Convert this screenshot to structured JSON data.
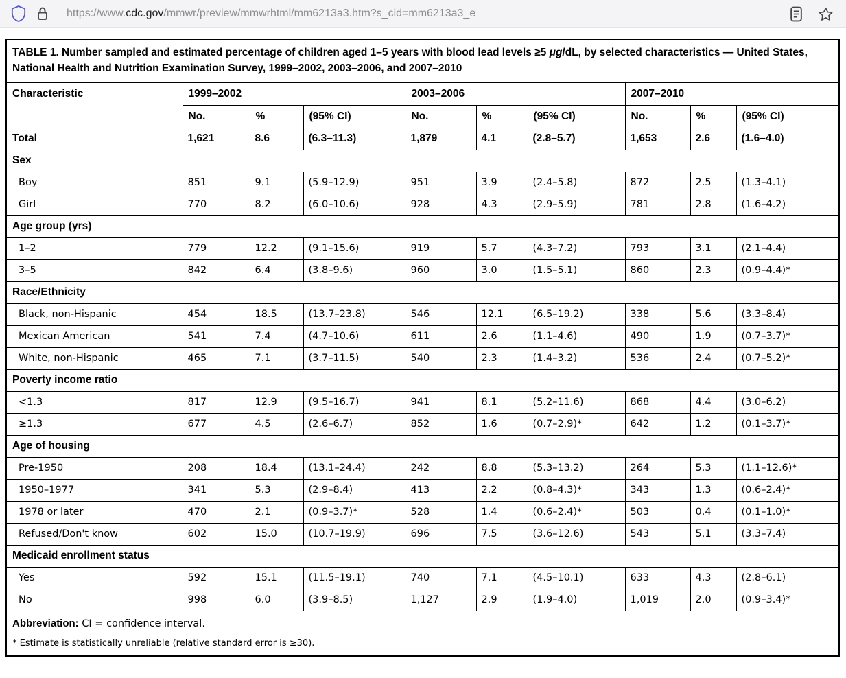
{
  "browser": {
    "url_prefix": "https://www.",
    "url_domain": "cdc.gov",
    "url_path": "/mmwr/preview/mmwrhtml/mm6213a3.htm?s_cid=mm6213a3_e",
    "icons": {
      "left": [
        "shield-icon",
        "lock-icon"
      ],
      "right": [
        "reader-mode-icon",
        "bookmark-star-icon"
      ]
    },
    "colors": {
      "shield": "#5a5ad2",
      "chrome_bg": "#f4f3f5",
      "url_gray": "#8d8c90",
      "url_dark": "#1e1e1f"
    }
  },
  "table": {
    "title_pre": "TABLE 1. Number sampled and estimated percentage of children aged 1–5 years with blood lead levels ≥5 ",
    "title_italic": "μg",
    "title_post": "/dL, by selected characteristics — United States, National Health and Nutrition Examination Survey, 1999–2002, 2003–2006, and 2007–2010",
    "characteristic_header": "Characteristic",
    "col_groups": [
      "1999–2002",
      "2003–2006",
      "2007–2010"
    ],
    "sub_headers": [
      "No.",
      "%",
      "(95% CI)"
    ],
    "total_row": {
      "label": "Total",
      "values": [
        "1,621",
        "8.6",
        "(6.3–11.3)",
        "1,879",
        "4.1",
        "(2.8–5.7)",
        "1,653",
        "2.6",
        "(1.6–4.0)"
      ]
    },
    "sections": [
      {
        "header": "Sex",
        "rows": [
          {
            "label": "Boy",
            "values": [
              "851",
              "9.1",
              "(5.9–12.9)",
              "951",
              "3.9",
              "(2.4–5.8)",
              "872",
              "2.5",
              "(1.3–4.1)"
            ]
          },
          {
            "label": "Girl",
            "values": [
              "770",
              "8.2",
              "(6.0–10.6)",
              "928",
              "4.3",
              "(2.9–5.9)",
              "781",
              "2.8",
              "(1.6–4.2)"
            ]
          }
        ]
      },
      {
        "header": "Age group (yrs)",
        "rows": [
          {
            "label": "1–2",
            "values": [
              "779",
              "12.2",
              "(9.1–15.6)",
              "919",
              "5.7",
              "(4.3–7.2)",
              "793",
              "3.1",
              "(2.1–4.4)"
            ]
          },
          {
            "label": "3–5",
            "values": [
              "842",
              "6.4",
              "(3.8–9.6)",
              "960",
              "3.0",
              "(1.5–5.1)",
              "860",
              "2.3",
              "(0.9–4.4)*"
            ]
          }
        ]
      },
      {
        "header": "Race/Ethnicity",
        "rows": [
          {
            "label": "Black, non-Hispanic",
            "values": [
              "454",
              "18.5",
              "(13.7–23.8)",
              "546",
              "12.1",
              "(6.5–19.2)",
              "338",
              "5.6",
              "(3.3–8.4)"
            ]
          },
          {
            "label": "Mexican American",
            "values": [
              "541",
              "7.4",
              "(4.7–10.6)",
              "611",
              "2.6",
              "(1.1–4.6)",
              "490",
              "1.9",
              "(0.7–3.7)*"
            ]
          },
          {
            "label": "White, non-Hispanic",
            "values": [
              "465",
              "7.1",
              "(3.7–11.5)",
              "540",
              "2.3",
              "(1.4–3.2)",
              "536",
              "2.4",
              "(0.7–5.2)*"
            ]
          }
        ]
      },
      {
        "header": "Poverty income ratio",
        "rows": [
          {
            "label": "<1.3",
            "values": [
              "817",
              "12.9",
              "(9.5–16.7)",
              "941",
              "8.1",
              "(5.2–11.6)",
              "868",
              "4.4",
              "(3.0–6.2)"
            ]
          },
          {
            "label": "≥1.3",
            "values": [
              "677",
              "4.5",
              "(2.6–6.7)",
              "852",
              "1.6",
              "(0.7–2.9)*",
              "642",
              "1.2",
              "(0.1–3.7)*"
            ]
          }
        ]
      },
      {
        "header": "Age of housing",
        "rows": [
          {
            "label": "Pre-1950",
            "values": [
              "208",
              "18.4",
              "(13.1–24.4)",
              "242",
              "8.8",
              "(5.3–13.2)",
              "264",
              "5.3",
              "(1.1–12.6)*"
            ]
          },
          {
            "label": "1950–1977",
            "values": [
              "341",
              "5.3",
              "(2.9–8.4)",
              "413",
              "2.2",
              "(0.8–4.3)*",
              "343",
              "1.3",
              "(0.6–2.4)*"
            ]
          },
          {
            "label": "1978 or later",
            "values": [
              "470",
              "2.1",
              "(0.9–3.7)*",
              "528",
              "1.4",
              "(0.6–2.4)*",
              "503",
              "0.4",
              "(0.1–1.0)*"
            ]
          },
          {
            "label": "Refused/Don't know",
            "values": [
              "602",
              "15.0",
              "(10.7–19.9)",
              "696",
              "7.5",
              "(3.6–12.6)",
              "543",
              "5.1",
              "(3.3–7.4)"
            ]
          }
        ]
      },
      {
        "header": "Medicaid enrollment status",
        "rows": [
          {
            "label": "Yes",
            "values": [
              "592",
              "15.1",
              "(11.5–19.1)",
              "740",
              "7.1",
              "(4.5–10.1)",
              "633",
              "4.3",
              "(2.8–6.1)"
            ]
          },
          {
            "label": "No",
            "values": [
              "998",
              "6.0",
              "(3.9–8.5)",
              "1,127",
              "2.9",
              "(1.9–4.0)",
              "1,019",
              "2.0",
              "(0.9–3.4)*"
            ]
          }
        ]
      }
    ],
    "footnotes": [
      {
        "bold": "Abbreviation:",
        "text": " CI = confidence interval."
      },
      {
        "bold": "",
        "text": "* Estimate is statistically unreliable (relative standard error is ≥30)."
      }
    ]
  }
}
